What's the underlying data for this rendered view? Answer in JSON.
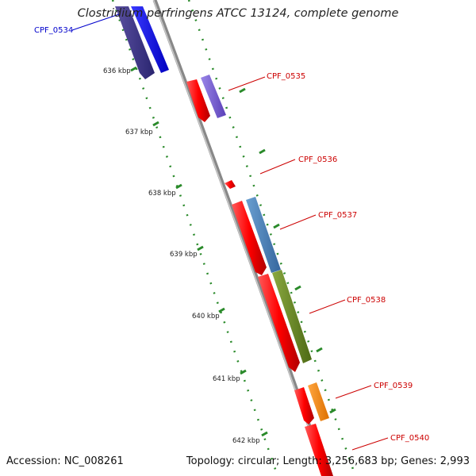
{
  "title": "Clostridium perfringens ATCC 13124, complete genome",
  "footer": {
    "accession": "Accession: NC_008261",
    "topology": "Topology: circular; Length: 3,256,683 bp; Genes: 2,993"
  },
  "kbp_labels": [
    "636 kbp",
    "637 kbp",
    "638 kbp",
    "639 kbp",
    "640 kbp",
    "641 kbp",
    "642 kbp"
  ],
  "genes": [
    {
      "name": "CPF_0534",
      "color": "#0000cc"
    },
    {
      "name": "CPF_0535",
      "color": "#cc0000"
    },
    {
      "name": "CPF_0536",
      "color": "#cc0000"
    },
    {
      "name": "CPF_0537",
      "color": "#cc0000"
    },
    {
      "name": "CPF_0538",
      "color": "#cc0000"
    },
    {
      "name": "CPF_0539",
      "color": "#cc0000"
    },
    {
      "name": "CPF_0540",
      "color": "#cc0000"
    }
  ],
  "colors": {
    "backbone": "#888888",
    "tick": "#2a8a2a",
    "gene_red": "#ff0000",
    "gene_blue": "#0000ff",
    "gene_navy": "#3a3380",
    "gene_purple": "#7a5fd6",
    "gene_steelblue": "#4a7fb8",
    "gene_olive": "#6a8a20",
    "gene_orange": "#ff8c00"
  }
}
